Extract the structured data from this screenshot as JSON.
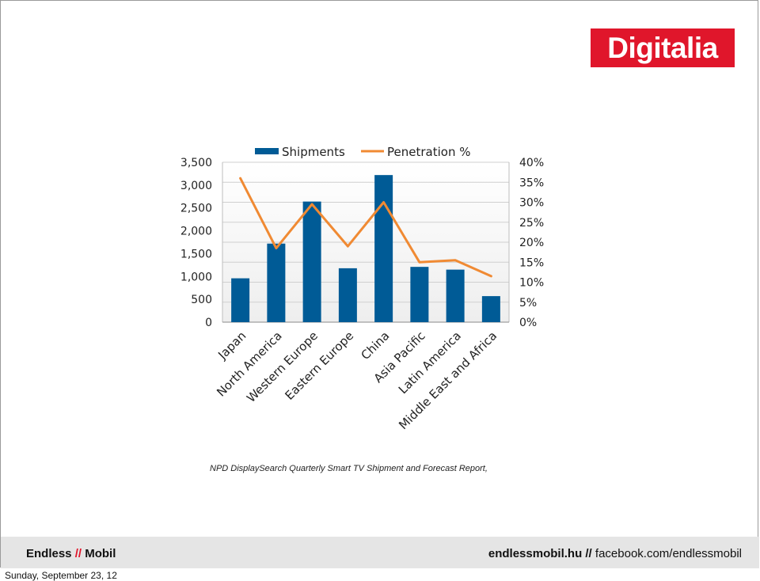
{
  "brand": {
    "name": "Digitalia",
    "color": "#e0162b"
  },
  "chart_data": {
    "type": "bar",
    "categories": [
      "Japan",
      "North America",
      "Western Europe",
      "Eastern Europe",
      "China",
      "Asia Pacific",
      "Latin America",
      "Middle East and Africa"
    ],
    "series": [
      {
        "name": "Shipments",
        "kind": "bar",
        "axis": "left",
        "color": "#005b96",
        "values": [
          960,
          1720,
          2640,
          1180,
          3220,
          1210,
          1150,
          570
        ]
      },
      {
        "name": "Penetration %",
        "kind": "line",
        "axis": "right",
        "color": "#f08a33",
        "values": [
          36,
          18.5,
          29.5,
          19,
          30,
          15,
          15.5,
          11.5
        ]
      }
    ],
    "y_left": {
      "min": 0,
      "max": 3500,
      "ticks": [
        "0",
        "500",
        "1,000",
        "1,500",
        "2,000",
        "2,500",
        "3,000",
        "3,500"
      ]
    },
    "y_right": {
      "min": 0,
      "max": 40,
      "ticks": [
        "0%",
        "5%",
        "10%",
        "15%",
        "20%",
        "25%",
        "30%",
        "35%",
        "40%"
      ]
    },
    "grid": true,
    "legend": "top"
  },
  "source": "NPD DisplaySearch Quarterly Smart TV Shipment and Forecast Report,",
  "footer": {
    "left_a": "Endless",
    "left_sep": "//",
    "left_b": "Mobil",
    "right_site": "endlessmobil.hu //",
    "right_social": " facebook.com/endlessmobil"
  },
  "date": "Sunday, September 23, 12"
}
